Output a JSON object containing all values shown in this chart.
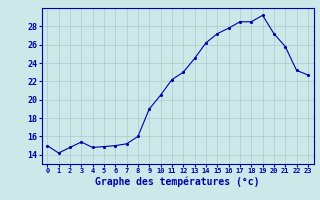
{
  "hours": [
    0,
    1,
    2,
    3,
    4,
    5,
    6,
    7,
    8,
    9,
    10,
    11,
    12,
    13,
    14,
    15,
    16,
    17,
    18,
    19,
    20,
    21,
    22,
    23
  ],
  "temps": [
    15.0,
    14.2,
    14.8,
    15.4,
    14.8,
    14.9,
    15.0,
    15.2,
    16.0,
    19.0,
    20.5,
    22.2,
    23.0,
    24.5,
    26.2,
    27.2,
    27.8,
    28.5,
    28.5,
    29.2,
    27.2,
    25.8,
    23.2,
    22.7
  ],
  "line_color": "#0000aa",
  "marker": ".",
  "bg_color": "#cce8e8",
  "grid_color": "#aacccc",
  "axis_color": "#0000aa",
  "xlabel": "Graphe des températures (°c)",
  "xlabel_fontsize": 7,
  "tick_label_color": "#0000aa",
  "ylim": [
    13,
    30
  ],
  "yticks": [
    14,
    16,
    18,
    20,
    22,
    24,
    26,
    28
  ],
  "xlim": [
    -0.5,
    23.5
  ],
  "figwidth": 3.2,
  "figheight": 2.0,
  "dpi": 100
}
